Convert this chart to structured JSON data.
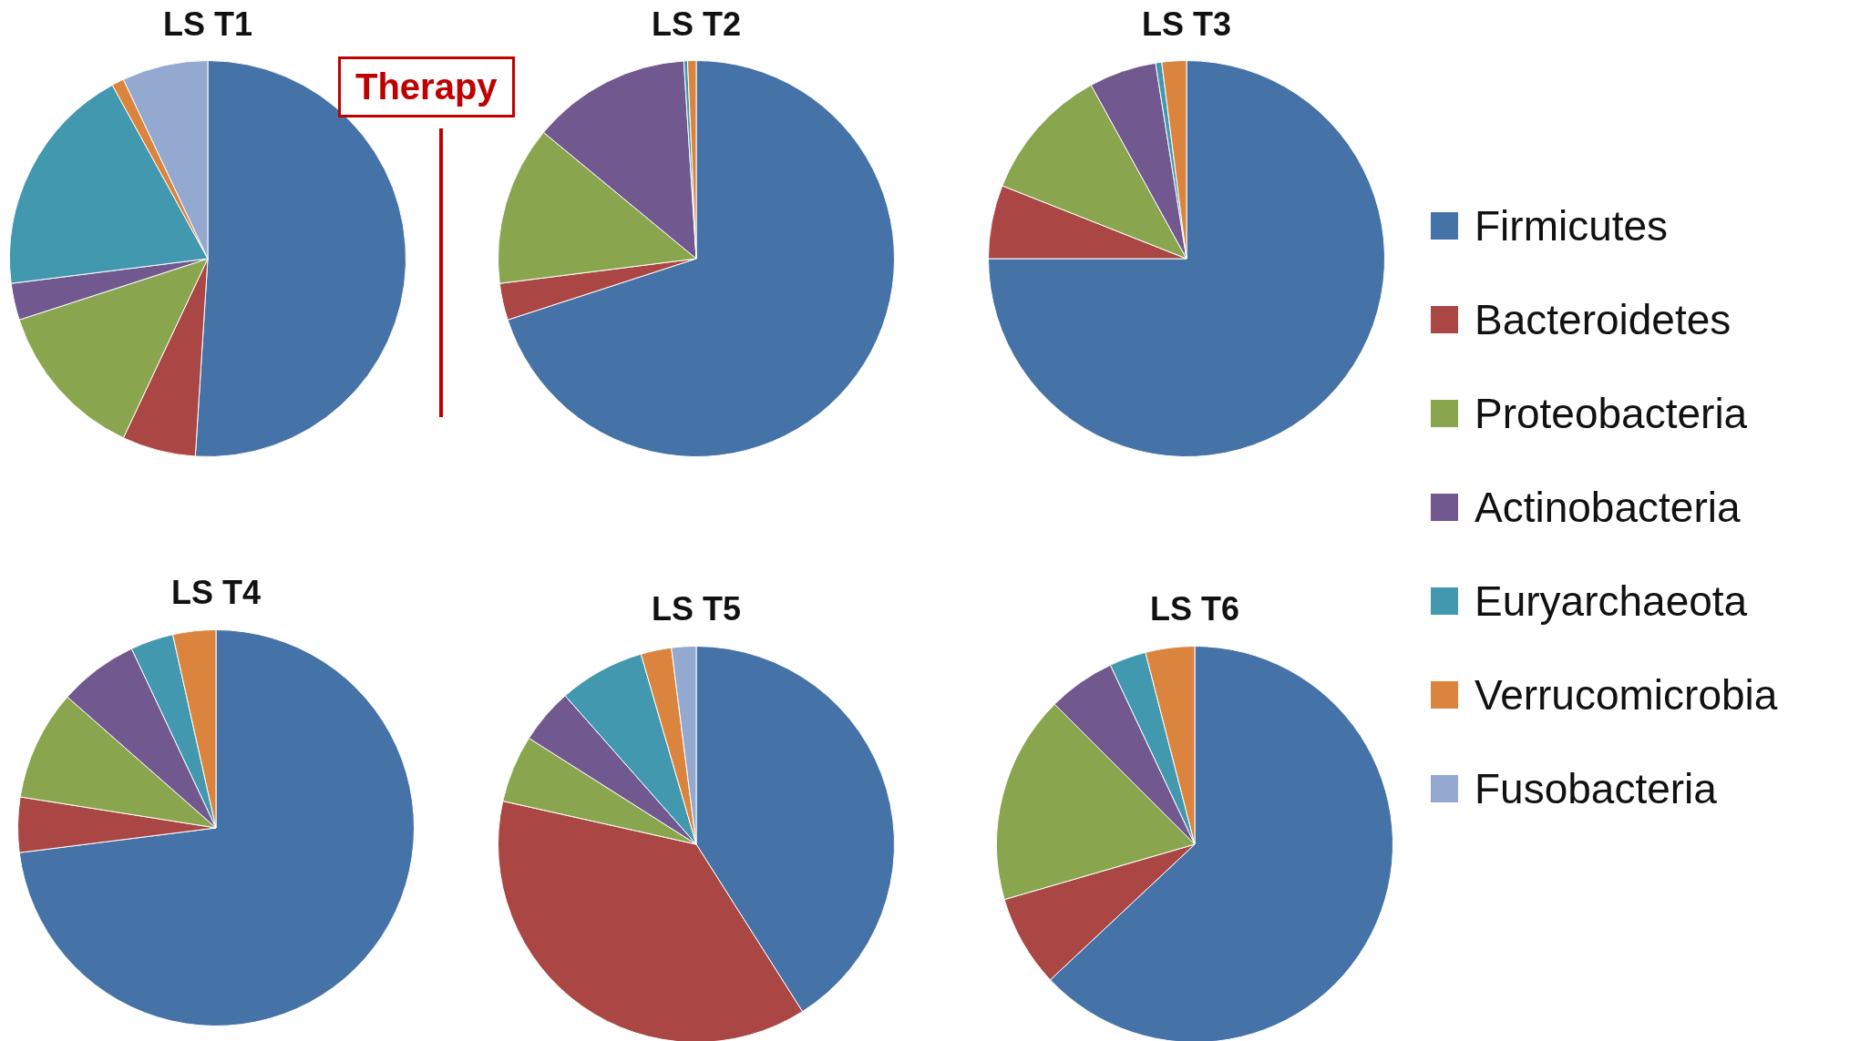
{
  "chart_data": [
    {
      "type": "pie",
      "title": "LS T1",
      "categories": [
        null,
        null,
        null,
        null,
        null,
        null,
        null
      ],
      "values": [
        51,
        6,
        13,
        3,
        19,
        1,
        7
      ],
      "colors": [
        "#4572a7",
        "#aa4643",
        "#89a54e",
        "#71588f",
        "#4198af",
        "#db843d",
        "#93a9cf"
      ],
      "annotations": [
        "Therapy"
      ]
    },
    {
      "type": "pie",
      "title": "LS T2",
      "categories": [
        null,
        null,
        null,
        null,
        null,
        null,
        null
      ],
      "values": [
        70,
        3,
        13,
        13,
        0.3,
        0.7,
        0
      ],
      "colors": [
        "#4572a7",
        "#aa4643",
        "#89a54e",
        "#71588f",
        "#4198af",
        "#db843d",
        "#93a9cf"
      ]
    },
    {
      "type": "pie",
      "title": "LS T3",
      "categories": [
        "Firmicutes",
        "Bacteroidetes",
        "Proteobacteria",
        "Actinobacteria",
        "Euryarchaeota",
        "Verrucomicrobia",
        "Fusobacteria"
      ],
      "values": [
        75,
        6,
        11,
        5.5,
        0.5,
        2,
        0
      ],
      "colors": [
        "#4572a7",
        "#aa4643",
        "#89a54e",
        "#71588f",
        "#4198af",
        "#db843d",
        "#93a9cf"
      ],
      "legend": "right"
    },
    {
      "type": "pie",
      "title": "LS T4",
      "categories": [
        null,
        null,
        null,
        null,
        null,
        null,
        null
      ],
      "values": [
        73,
        4.5,
        9,
        6.5,
        3.5,
        3.5,
        0
      ],
      "colors": [
        "#4572a7",
        "#aa4643",
        "#89a54e",
        "#71588f",
        "#4198af",
        "#db843d",
        "#93a9cf"
      ]
    },
    {
      "type": "pie",
      "title": "LS T5",
      "categories": [
        null,
        null,
        null,
        null,
        null,
        null,
        null
      ],
      "values": [
        41,
        37.5,
        5.5,
        4.5,
        7,
        2.5,
        2
      ],
      "colors": [
        "#4572a7",
        "#aa4643",
        "#89a54e",
        "#71588f",
        "#4198af",
        "#db843d",
        "#93a9cf"
      ]
    },
    {
      "type": "pie",
      "title": "LS T6",
      "categories": [
        null,
        null,
        null,
        null,
        null,
        null,
        null
      ],
      "values": [
        63,
        7.5,
        17,
        5.5,
        3,
        4,
        0
      ],
      "colors": [
        "#4572a7",
        "#aa4643",
        "#89a54e",
        "#71588f",
        "#4198af",
        "#db843d",
        "#93a9cf"
      ]
    }
  ]
}
